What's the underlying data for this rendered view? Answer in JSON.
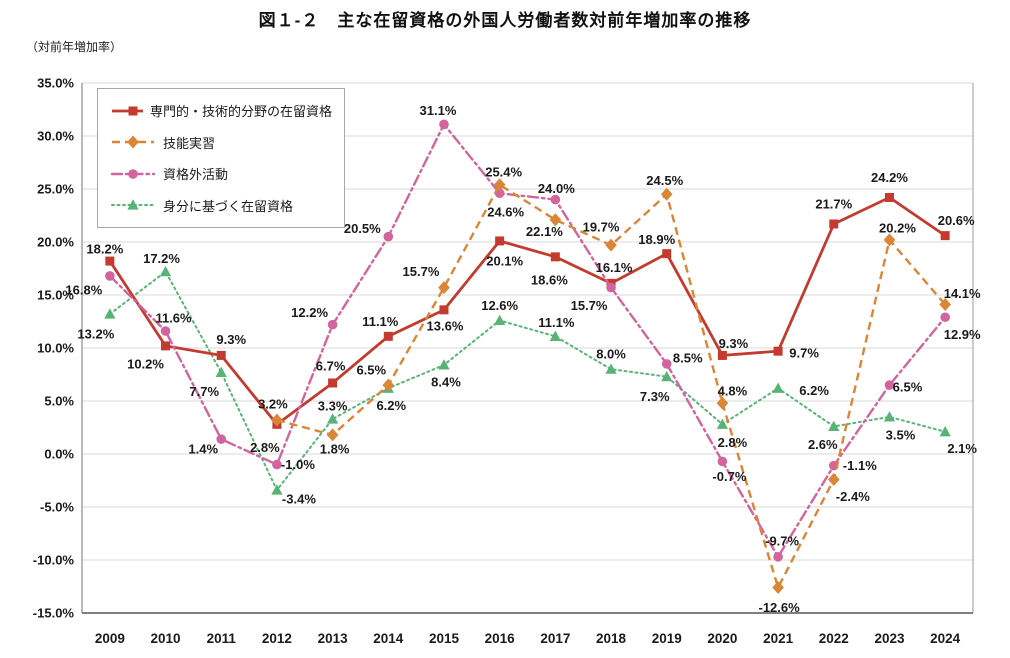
{
  "title": "図１-２　主な在留資格の外国人労働者数対前年増加率の推移",
  "y_unit": "（対前年増加率）",
  "chart_data": {
    "type": "line",
    "x": [
      "2009",
      "2010",
      "2011",
      "2012",
      "2013",
      "2014",
      "2015",
      "2016",
      "2017",
      "2018",
      "2019",
      "2020",
      "2021",
      "2022",
      "2023",
      "2024"
    ],
    "ylim": [
      -15,
      35
    ],
    "ytick_step": 5,
    "ytick_labels": [
      "35.0%",
      "30.0%",
      "25.0%",
      "20.0%",
      "15.0%",
      "10.0%",
      "5.0%",
      "0.0%",
      "-5.0%",
      "-10.0%",
      "-15.0%"
    ],
    "grid": true,
    "legend_position": "top-left",
    "value_suffix": "%",
    "series": [
      {
        "key": "professional-technical",
        "name": "専門的・技術的分野の在留資格",
        "color": "#c33b2e",
        "marker": "square",
        "line": "solid",
        "values": [
          18.2,
          10.2,
          9.3,
          2.8,
          6.7,
          11.1,
          13.6,
          20.1,
          18.6,
          16.1,
          18.9,
          9.3,
          9.7,
          21.7,
          24.2,
          20.6
        ]
      },
      {
        "key": "technical-intern-training",
        "name": "技能実習",
        "color": "#db8536",
        "marker": "diamond",
        "line": "dashed",
        "values": [
          null,
          null,
          null,
          3.2,
          1.8,
          6.5,
          15.7,
          25.4,
          22.1,
          19.7,
          24.5,
          4.8,
          -12.6,
          -2.4,
          20.2,
          14.1
        ]
      },
      {
        "key": "activities-outside-qualification",
        "name": "資格外活動",
        "color": "#d2649e",
        "marker": "circle",
        "line": "dashdot",
        "values": [
          16.8,
          11.6,
          1.4,
          -1.0,
          12.2,
          20.5,
          31.1,
          24.6,
          24.0,
          15.7,
          8.5,
          -0.7,
          -9.7,
          -1.1,
          6.5,
          12.9
        ]
      },
      {
        "key": "status-based",
        "name": "身分に基づく在留資格",
        "color": "#58b476",
        "marker": "triangle",
        "line": "dotted",
        "values": [
          13.2,
          17.2,
          7.7,
          -3.4,
          3.3,
          6.2,
          8.4,
          12.6,
          11.1,
          8.0,
          7.3,
          2.8,
          6.2,
          2.6,
          3.5,
          2.1
        ]
      }
    ]
  }
}
